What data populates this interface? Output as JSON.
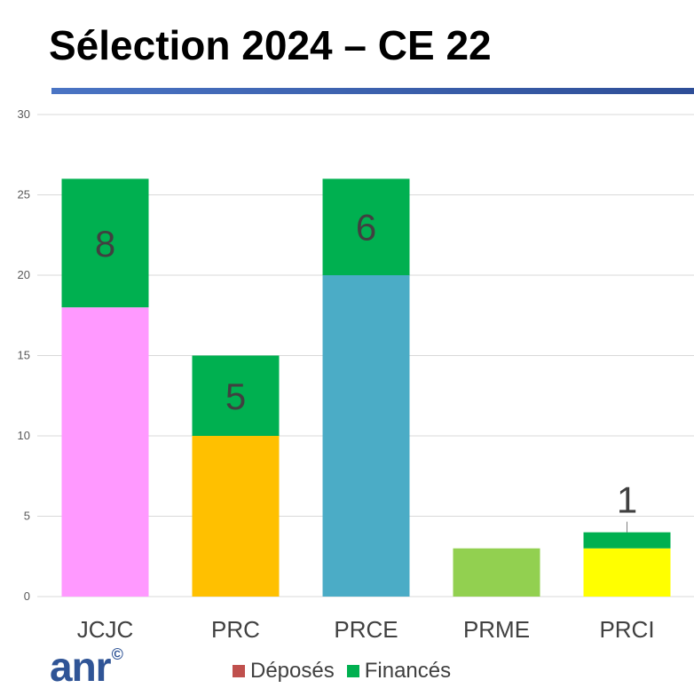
{
  "title": "Sélection 2024 – CE 22",
  "logo": {
    "text": "anr",
    "mark": "©"
  },
  "colors": {
    "title_rule": "#3e63b3",
    "deposes": "#c0504d",
    "finances": "#00b050",
    "grid": "#d9d9d9",
    "tick_text": "#595959",
    "label_text": "#404040"
  },
  "chart_data": {
    "type": "bar",
    "stacked": true,
    "categories": [
      "JCJC",
      "PRC",
      "PRCE",
      "PRME",
      "PRCI"
    ],
    "ylim": [
      0,
      30
    ],
    "yticks": [
      0,
      5,
      10,
      15,
      20,
      25,
      30
    ],
    "grid": true,
    "legend_position": "bottom",
    "base_colors": [
      "#ff99ff",
      "#ffc000",
      "#4bacc6",
      "#92d050",
      "#ffff00"
    ],
    "series": [
      {
        "name": "Déposés",
        "values": [
          18,
          10,
          20,
          3,
          3
        ],
        "color": "#c0504d"
      },
      {
        "name": "Financés",
        "values": [
          8,
          5,
          6,
          0,
          1
        ],
        "color": "#00b050"
      }
    ],
    "data_labels": [
      "8",
      "5",
      "6",
      "",
      "1"
    ]
  }
}
